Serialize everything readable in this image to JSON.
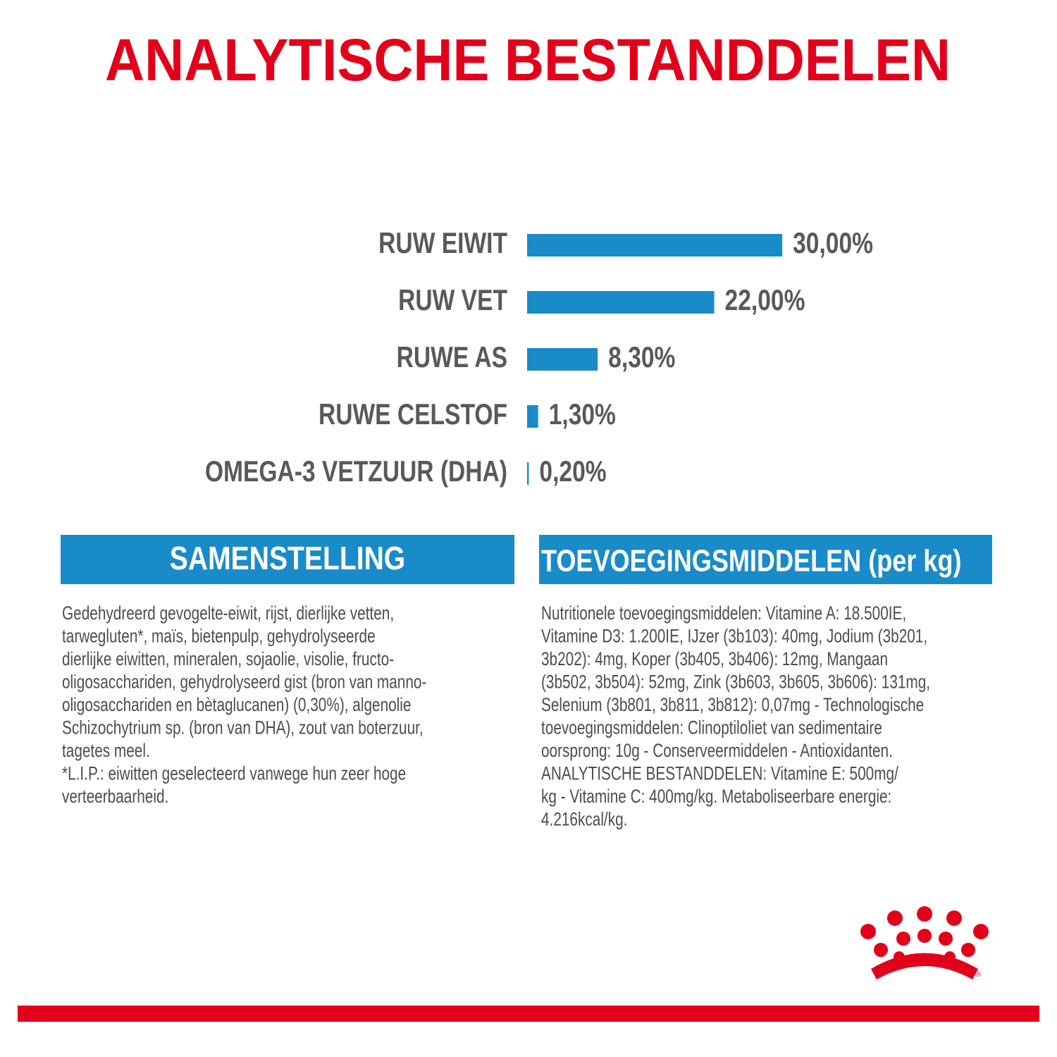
{
  "title": "ANALYTISCHE BESTANDDELEN",
  "chart_data": {
    "type": "bar",
    "orientation": "horizontal",
    "categories": [
      "RUW EIWIT",
      "RUW VET",
      "RUWE AS",
      "RUWE CELSTOF",
      "OMEGA-3 VETZUUR (DHA)"
    ],
    "values": [
      30,
      22,
      8.3,
      1.3,
      0.2
    ],
    "value_labels": [
      "30,00%",
      "22,00%",
      "8,30%",
      "1,30%",
      "0,20%"
    ],
    "color": "#1a8bc9"
  },
  "composition": {
    "heading": "SAMENSTELLING",
    "lines": [
      "Gedehydreerd gevogelte-eiwit, rijst, dierlijke vetten,",
      "tarwegluten*, maïs, bietenpulp, gehydrolyseerde",
      "dierlijke eiwitten, mineralen, sojaolie, visolie, fructo-",
      "oligosacchariden, gehydrolyseerd gist (bron van manno-",
      "oligosacchariden en bètaglucanen) (0,30%), algenolie",
      "Schizochytrium sp. (bron van DHA), zout van boterzuur,",
      "tagetes meel.",
      "*L.I.P.: eiwitten geselecteerd vanwege hun zeer hoge",
      "verteerbaarheid."
    ]
  },
  "additives": {
    "heading": "TOEVOEGINGSMIDDELEN (per kg)",
    "lines": [
      "Nutritionele toevoegingsmiddelen: Vitamine A: 18.500IE,",
      "Vitamine D3: 1.200IE, IJzer (3b103): 40mg, Jodium (3b201,",
      "3b202): 4mg, Koper (3b405, 3b406): 12mg, Mangaan",
      "(3b502, 3b504): 52mg, Zink (3b603, 3b605, 3b606): 131mg,",
      "Selenium (3b801, 3b811, 3b812): 0,07mg - Technologische",
      "toevoegingsmiddelen: Clinoptiloliet van sedimentaire",
      "oorsprong: 10g - Conserveermiddelen - Antioxidanten.",
      "ANALYTISCHE BESTANDDELEN: Vitamine E: 500mg/",
      "kg - Vitamine C: 400mg/kg. Metaboliseerbare energie:",
      "4.216kcal/kg."
    ]
  }
}
